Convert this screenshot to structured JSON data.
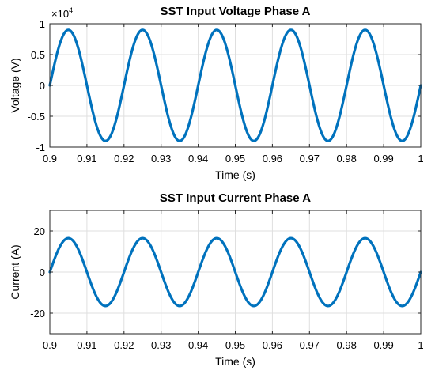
{
  "chart_data": [
    {
      "type": "line",
      "title": "SST Input Voltage Phase A",
      "xlabel": "Time (s)",
      "ylabel": "Voltage (V)",
      "y_exponent_label": "×10",
      "y_exponent": "4",
      "xlim": [
        0.9,
        1.0
      ],
      "ylim": [
        -1,
        1
      ],
      "x_ticks": [
        0.9,
        0.91,
        0.92,
        0.93,
        0.94,
        0.95,
        0.96,
        0.97,
        0.98,
        0.99,
        1.0
      ],
      "x_tick_labels": [
        "0.9",
        "0.91",
        "0.92",
        "0.93",
        "0.94",
        "0.95",
        "0.96",
        "0.97",
        "0.98",
        "0.99",
        "1"
      ],
      "y_ticks": [
        -1,
        -0.5,
        0,
        0.5,
        1
      ],
      "y_tick_labels": [
        "-1",
        "-0.5",
        "0",
        "0.5",
        "1"
      ],
      "grid": true,
      "series": [
        {
          "color": "#0072bd",
          "waveform": "sine",
          "amplitude": 0.9,
          "frequency_hz": 50,
          "phase_deg": 0,
          "x_start": 0.9,
          "x_end": 1.0
        }
      ]
    },
    {
      "type": "line",
      "title": "SST Input Current Phase A",
      "xlabel": "Time (s)",
      "ylabel": "Current (A)",
      "xlim": [
        0.9,
        1.0
      ],
      "ylim": [
        -30,
        30
      ],
      "x_ticks": [
        0.9,
        0.91,
        0.92,
        0.93,
        0.94,
        0.95,
        0.96,
        0.97,
        0.98,
        0.99,
        1.0
      ],
      "x_tick_labels": [
        "0.9",
        "0.91",
        "0.92",
        "0.93",
        "0.94",
        "0.95",
        "0.96",
        "0.97",
        "0.98",
        "0.99",
        "1"
      ],
      "y_ticks": [
        -20,
        0,
        20
      ],
      "y_tick_labels": [
        "-20",
        "0",
        "20"
      ],
      "grid": true,
      "series": [
        {
          "color": "#0072bd",
          "waveform": "sine",
          "amplitude": 16.5,
          "frequency_hz": 50,
          "phase_deg": 0,
          "x_start": 0.9,
          "x_end": 1.0
        }
      ]
    }
  ]
}
